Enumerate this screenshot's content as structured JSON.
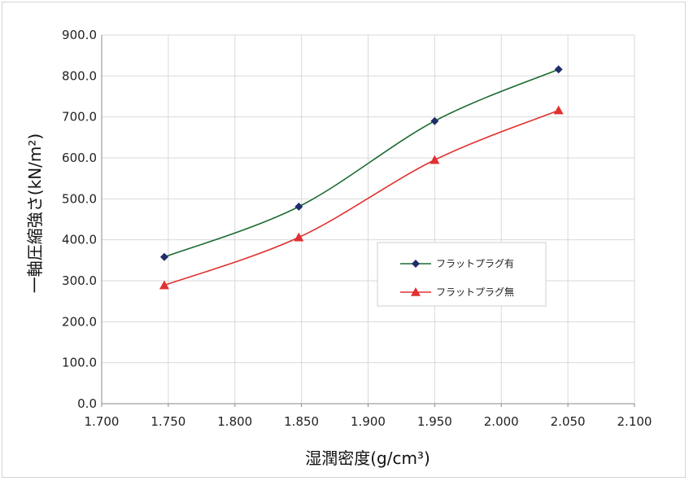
{
  "chart_data": {
    "type": "line",
    "xlabel": "湿潤密度(g/cm³)",
    "ylabel": "一軸圧縮強さ(kN/m²)",
    "xlim": [
      1.7,
      2.1
    ],
    "ylim": [
      0,
      900
    ],
    "x_ticks": [
      "1.700",
      "1.750",
      "1.800",
      "1.850",
      "1.900",
      "1.950",
      "2.000",
      "2.050",
      "2.100"
    ],
    "y_ticks": [
      "0.0",
      "100.0",
      "200.0",
      "300.0",
      "400.0",
      "500.0",
      "600.0",
      "700.0",
      "800.0",
      "900.0"
    ],
    "grid": true,
    "legend_position": "right",
    "series": [
      {
        "name": "フラットプラグ有",
        "color": "#1a6b2e",
        "marker": "diamond",
        "marker_color": "#1f2d6b",
        "x": [
          1.747,
          1.848,
          1.95,
          2.043
        ],
        "y": [
          358,
          481,
          690,
          816
        ]
      },
      {
        "name": "フラットプラグ無",
        "color": "#e03030",
        "marker": "triangle",
        "marker_color": "#e03030",
        "x": [
          1.747,
          1.848,
          1.95,
          2.043
        ],
        "y": [
          289,
          406,
          595,
          716
        ]
      }
    ]
  }
}
